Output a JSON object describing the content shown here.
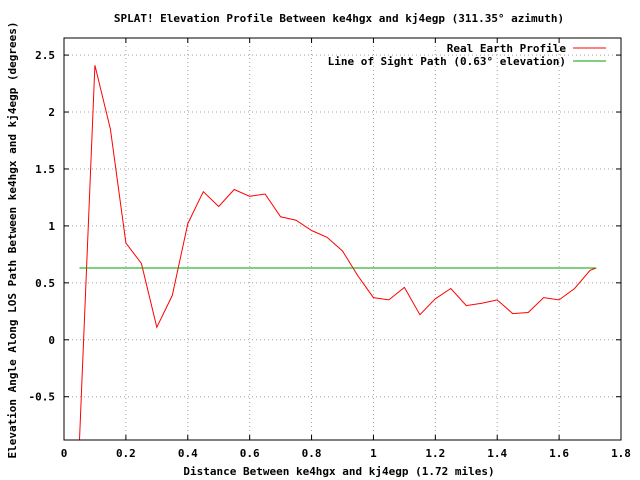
{
  "chart_data": {
    "type": "line",
    "title": "SPLAT! Elevation Profile Between ke4hgx and kj4egp (311.35° azimuth)",
    "xlabel": "Distance Between ke4hgx and kj4egp (1.72 miles)",
    "ylabel": "Elevation Angle Along LOS Path Between ke4hgx and kj4egp (degrees)",
    "xlim": [
      0,
      1.8
    ],
    "ylim": [
      -0.88,
      2.65
    ],
    "x_ticks": [
      0,
      0.2,
      0.4,
      0.6,
      0.8,
      1,
      1.2,
      1.4,
      1.6,
      1.8
    ],
    "x_tick_labels": [
      "0",
      "0.2",
      "0.4",
      "0.6",
      "0.8",
      "1",
      "1.2",
      "1.4",
      "1.6",
      "1.8"
    ],
    "y_ticks": [
      -0.5,
      0,
      0.5,
      1,
      1.5,
      2,
      2.5
    ],
    "y_tick_labels": [
      "-0.5",
      "0",
      "0.5",
      "1",
      "1.5",
      "2",
      "2.5"
    ],
    "grid": true,
    "legend_position": "top-right",
    "series": [
      {
        "name": "Real Earth Profile",
        "color": "#ff0000",
        "x": [
          0.05,
          0.1,
          0.15,
          0.2,
          0.25,
          0.3,
          0.35,
          0.4,
          0.45,
          0.5,
          0.55,
          0.6,
          0.65,
          0.7,
          0.75,
          0.8,
          0.85,
          0.9,
          0.95,
          1.0,
          1.05,
          1.1,
          1.15,
          1.2,
          1.25,
          1.3,
          1.35,
          1.4,
          1.45,
          1.5,
          1.55,
          1.6,
          1.65,
          1.7,
          1.72
        ],
        "y": [
          -0.88,
          2.41,
          1.85,
          0.85,
          0.67,
          0.11,
          0.39,
          1.02,
          1.3,
          1.17,
          1.32,
          1.26,
          1.28,
          1.08,
          1.05,
          0.96,
          0.9,
          0.78,
          0.56,
          0.37,
          0.35,
          0.46,
          0.22,
          0.36,
          0.45,
          0.3,
          0.32,
          0.35,
          0.23,
          0.24,
          0.37,
          0.35,
          0.45,
          0.61,
          0.63
        ]
      },
      {
        "name": "Line of Sight Path (0.63° elevation)",
        "color": "#00a000",
        "x": [
          0.05,
          1.72
        ],
        "y": [
          0.63,
          0.63
        ]
      }
    ]
  }
}
